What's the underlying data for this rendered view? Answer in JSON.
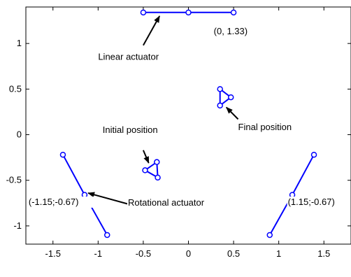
{
  "chart_data": {
    "type": "scatter",
    "xlim": [
      -1.8,
      1.8
    ],
    "ylim": [
      -1.2,
      1.4
    ],
    "grid": false,
    "x_ticks": [
      {
        "value": -1.5,
        "label": "-1.5"
      },
      {
        "value": -1,
        "label": "-1"
      },
      {
        "value": -0.5,
        "label": "-0.5"
      },
      {
        "value": 0,
        "label": "0"
      },
      {
        "value": 0.5,
        "label": "0.5"
      },
      {
        "value": 1,
        "label": "1"
      },
      {
        "value": 1.5,
        "label": "1.5"
      }
    ],
    "y_ticks": [
      {
        "value": 1,
        "label": "1"
      },
      {
        "value": 0.5,
        "label": "0.5"
      },
      {
        "value": 0,
        "label": "0"
      },
      {
        "value": -0.5,
        "label": "-0.5"
      },
      {
        "value": -1,
        "label": "-1"
      }
    ],
    "line_color": "#0000ff",
    "series": [
      {
        "closed": false,
        "points": [
          [
            -0.5,
            1.34
          ],
          [
            0.0,
            1.34
          ],
          [
            0.5,
            1.34
          ]
        ]
      },
      {
        "closed": false,
        "points": [
          [
            -1.39,
            -0.22
          ],
          [
            -1.15,
            -0.66
          ],
          [
            -0.9,
            -1.1
          ]
        ]
      },
      {
        "closed": false,
        "points": [
          [
            0.9,
            -1.1
          ],
          [
            1.15,
            -0.66
          ],
          [
            1.39,
            -0.22
          ]
        ]
      },
      {
        "closed": true,
        "points": [
          [
            -0.48,
            -0.39
          ],
          [
            -0.35,
            -0.3
          ],
          [
            -0.34,
            -0.47
          ]
        ]
      },
      {
        "closed": true,
        "points": [
          [
            0.35,
            0.5
          ],
          [
            0.35,
            0.32
          ],
          [
            0.47,
            0.41
          ]
        ]
      }
    ],
    "annotations": [
      {
        "text": "(0, 1.33)",
        "x": 0.28,
        "y": 1.1
      },
      {
        "text": "Linear actuator",
        "x": -1.0,
        "y": 0.82
      },
      {
        "text": "Initial position",
        "x": -0.95,
        "y": 0.02
      },
      {
        "text": "Final position",
        "x": 0.55,
        "y": 0.05
      },
      {
        "text": "Rotational actuator",
        "x": -0.67,
        "y": -0.78
      },
      {
        "text": "(-1.15;-0.67)",
        "x": -1.77,
        "y": -0.77
      },
      {
        "text": "(1.15;-0.67)",
        "x": 1.1,
        "y": -0.77
      }
    ],
    "arrows": [
      {
        "from": [
          -0.5,
          0.98
        ],
        "to": [
          -0.32,
          1.3
        ]
      },
      {
        "from": [
          -0.5,
          -0.17
        ],
        "to": [
          -0.44,
          -0.31
        ]
      },
      {
        "from": [
          0.55,
          0.17
        ],
        "to": [
          0.42,
          0.3
        ]
      },
      {
        "from": [
          -0.67,
          -0.76
        ],
        "to": [
          -1.11,
          -0.64
        ]
      }
    ]
  }
}
